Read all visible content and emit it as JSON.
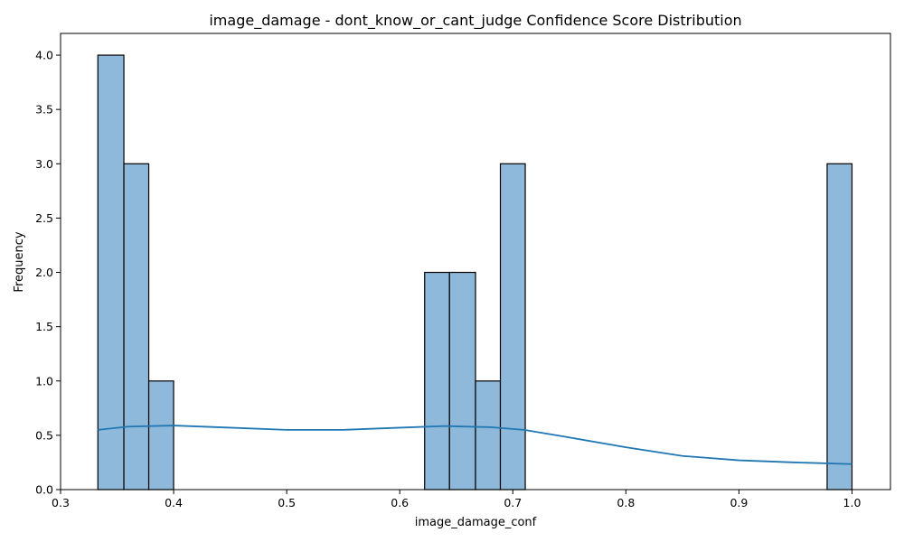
{
  "chart_data": {
    "type": "bar",
    "title": "image_damage - dont_know_or_cant_judge Confidence Score Distribution",
    "xlabel": "image_damage_conf",
    "ylabel": "Frequency",
    "xlim": [
      0.3,
      1.034
    ],
    "ylim": [
      0,
      4.2
    ],
    "xticks": [
      0.3,
      0.4,
      0.5,
      0.6,
      0.7,
      0.8,
      0.9,
      1.0
    ],
    "xtick_labels": [
      "0.3",
      "0.4",
      "0.5",
      "0.6",
      "0.7",
      "0.8",
      "0.9",
      "1.0"
    ],
    "yticks": [
      0,
      0.5,
      1,
      1.5,
      2,
      2.5,
      3,
      3.5,
      4
    ],
    "ytick_labels": [
      "0.0",
      "0.5",
      "1.0",
      "1.5",
      "2.0",
      "2.5",
      "3.0",
      "3.5",
      "4.0"
    ],
    "grid": false,
    "bar_color": "#8fb9da",
    "line_color": "#1f77b4",
    "bins": [
      {
        "x0": 0.333,
        "x1": 0.356,
        "count": 4
      },
      {
        "x0": 0.356,
        "x1": 0.378,
        "count": 3
      },
      {
        "x0": 0.378,
        "x1": 0.4,
        "count": 1
      },
      {
        "x0": 0.622,
        "x1": 0.644,
        "count": 2
      },
      {
        "x0": 0.644,
        "x1": 0.667,
        "count": 2
      },
      {
        "x0": 0.667,
        "x1": 0.689,
        "count": 1
      },
      {
        "x0": 0.689,
        "x1": 0.711,
        "count": 3
      },
      {
        "x0": 0.978,
        "x1": 1.0,
        "count": 3
      }
    ],
    "kde": {
      "x": [
        0.333,
        0.36,
        0.4,
        0.45,
        0.5,
        0.55,
        0.6,
        0.64,
        0.68,
        0.71,
        0.75,
        0.8,
        0.85,
        0.9,
        0.95,
        1.0
      ],
      "y": [
        0.55,
        0.58,
        0.59,
        0.57,
        0.55,
        0.55,
        0.57,
        0.585,
        0.575,
        0.55,
        0.48,
        0.39,
        0.31,
        0.27,
        0.25,
        0.235
      ]
    }
  }
}
